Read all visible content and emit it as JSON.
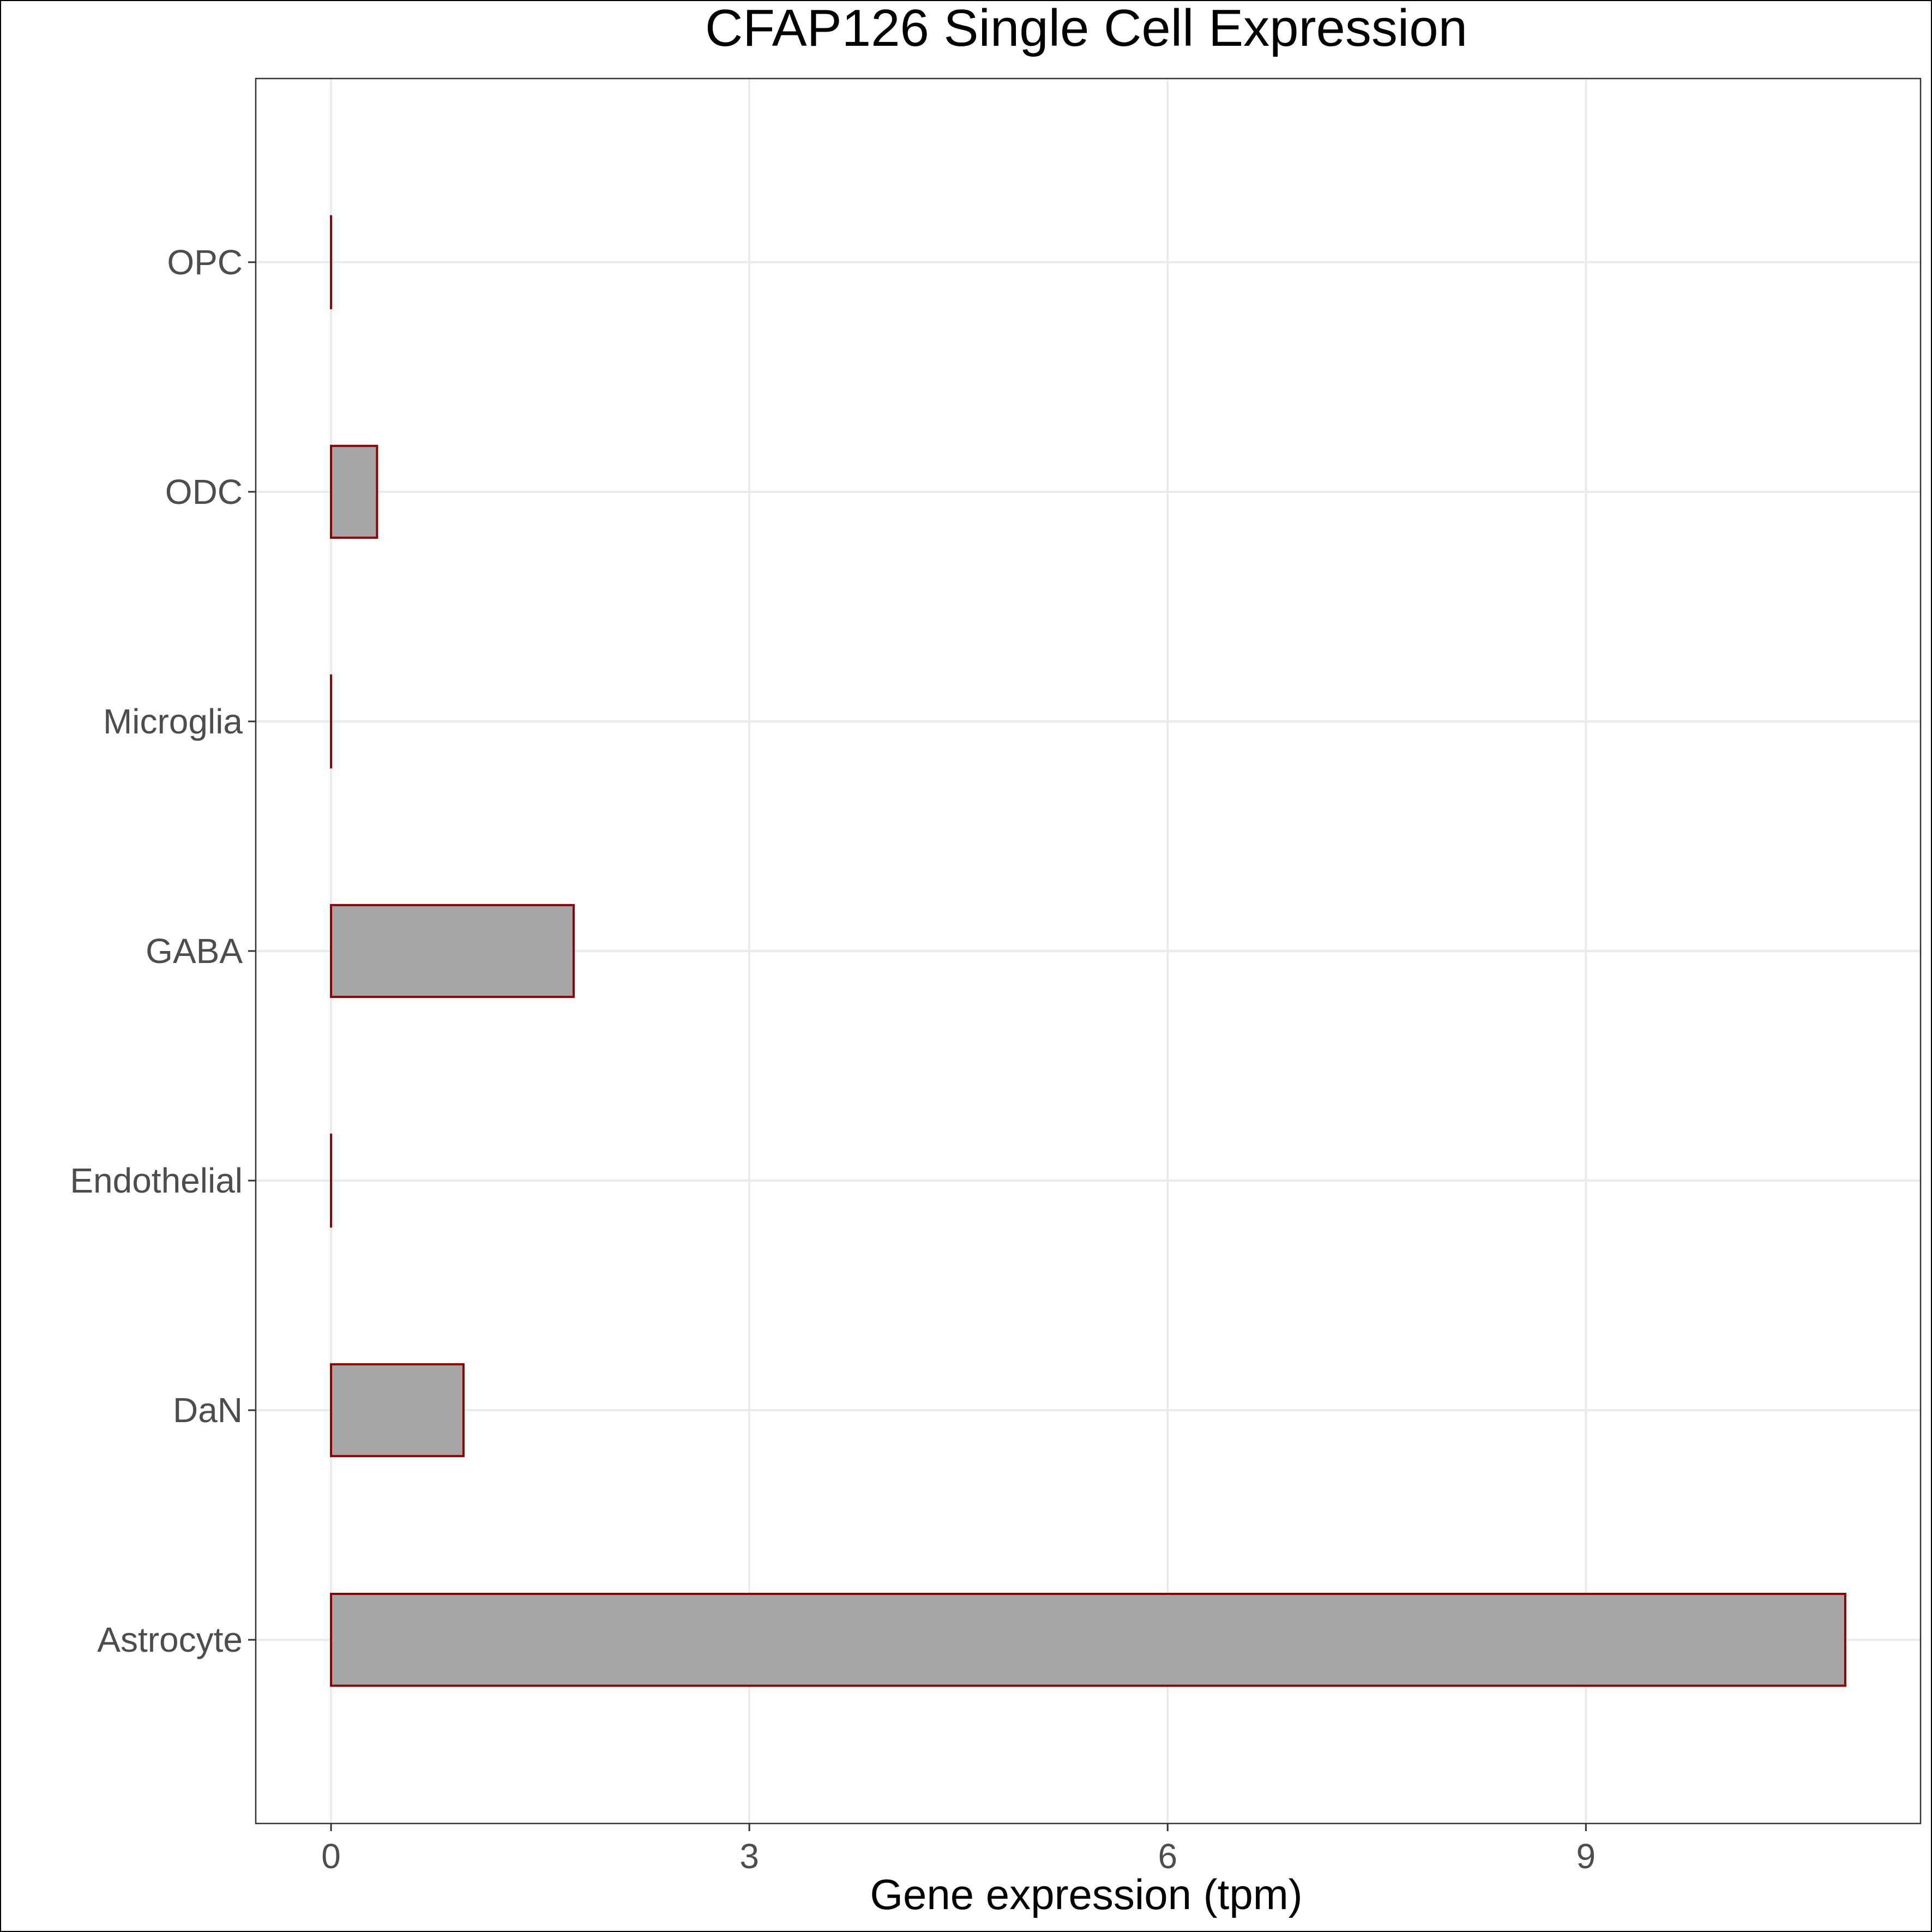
{
  "chart_data": {
    "type": "bar",
    "orientation": "horizontal",
    "title": "CFAP126 Single Cell Expression",
    "xlabel": "Gene expression (tpm)",
    "ylabel": "",
    "categories": [
      "Astrocyte",
      "DaN",
      "Endothelial",
      "GABA",
      "Microglia",
      "ODC",
      "OPC"
    ],
    "values": [
      10.86,
      0.95,
      0.0,
      1.74,
      0.0,
      0.33,
      0.0
    ],
    "xlim": [
      -0.54,
      11.4
    ],
    "xticks": [
      0,
      3,
      6,
      9
    ],
    "grid": true,
    "legend": "none",
    "colors": {
      "bar_fill": "#a6a6a6",
      "bar_stroke": "#8b0000",
      "grid": "#ebebeb",
      "axis_text": "#4d4d4d",
      "title": "#000000"
    }
  }
}
